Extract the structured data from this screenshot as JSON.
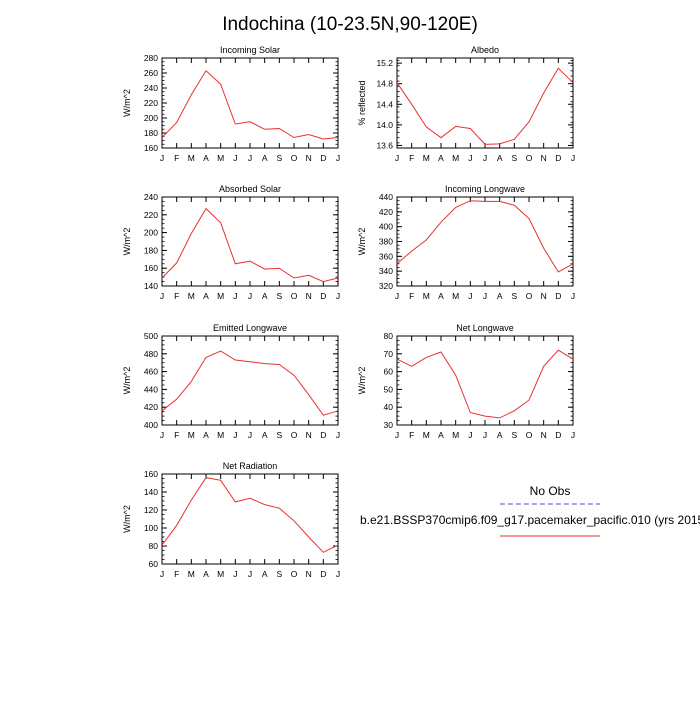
{
  "figure_title": "Indochina (10-23.5N,90-120E)",
  "legend": {
    "obs_label": "No Obs",
    "obs_color": "#6f6fe0",
    "model_label": "b.e21.BSSP370cmip6.f09_g17.pacemaker_pacific.010 (yrs 2015",
    "model_color": "#e8312f"
  },
  "line_color": "#e8312f",
  "chart_data": [
    {
      "type": "line",
      "title": "Incoming Solar",
      "ylabel": "W/m^2",
      "categories": [
        "J",
        "F",
        "M",
        "A",
        "M",
        "J",
        "J",
        "A",
        "S",
        "O",
        "N",
        "D",
        "J"
      ],
      "ylim": [
        160,
        280
      ],
      "yticks": [
        160,
        180,
        200,
        220,
        240,
        260,
        280
      ],
      "series": [
        {
          "name": "b.e21.BSSP370cmip6.f09_g17.pacemaker_pacific.010",
          "values": [
            174,
            194,
            231,
            263,
            245,
            192,
            195,
            185,
            186,
            174,
            178,
            172,
            174
          ]
        }
      ]
    },
    {
      "type": "line",
      "title": "Albedo",
      "ylabel": "% reflected",
      "categories": [
        "J",
        "F",
        "M",
        "A",
        "M",
        "J",
        "J",
        "A",
        "S",
        "O",
        "N",
        "D",
        "J"
      ],
      "ylim": [
        13.55,
        15.3
      ],
      "yticks": [
        13.6,
        14.0,
        14.4,
        14.8,
        15.2
      ],
      "series": [
        {
          "name": "b.e21.BSSP370cmip6.f09_g17.pacemaker_pacific.010",
          "values": [
            14.82,
            14.4,
            13.96,
            13.75,
            13.97,
            13.93,
            13.62,
            13.63,
            13.72,
            14.06,
            14.62,
            15.1,
            14.82
          ]
        }
      ]
    },
    {
      "type": "line",
      "title": "Absorbed Solar",
      "ylabel": "W/m^2",
      "categories": [
        "J",
        "F",
        "M",
        "A",
        "M",
        "J",
        "J",
        "A",
        "S",
        "O",
        "N",
        "D",
        "J"
      ],
      "ylim": [
        140,
        240
      ],
      "yticks": [
        140,
        160,
        180,
        200,
        220,
        240
      ],
      "series": [
        {
          "name": "b.e21.BSSP370cmip6.f09_g17.pacemaker_pacific.010",
          "values": [
            149,
            166,
            199,
            227,
            211,
            165,
            168,
            159,
            160,
            149,
            152,
            145,
            149
          ]
        }
      ]
    },
    {
      "type": "line",
      "title": "Incoming Longwave",
      "ylabel": "W/m^2",
      "categories": [
        "J",
        "F",
        "M",
        "A",
        "M",
        "J",
        "J",
        "A",
        "S",
        "O",
        "N",
        "D",
        "J"
      ],
      "ylim": [
        320,
        440
      ],
      "yticks": [
        320,
        340,
        360,
        380,
        400,
        420,
        440
      ],
      "series": [
        {
          "name": "b.e21.BSSP370cmip6.f09_g17.pacemaker_pacific.010",
          "values": [
            350,
            367,
            382,
            406,
            426,
            435,
            434,
            434,
            429,
            411,
            371,
            339,
            350
          ]
        }
      ]
    },
    {
      "type": "line",
      "title": "Emitted Longwave",
      "ylabel": "W/m^2",
      "categories": [
        "J",
        "F",
        "M",
        "A",
        "M",
        "J",
        "J",
        "A",
        "S",
        "O",
        "N",
        "D",
        "J"
      ],
      "ylim": [
        400,
        500
      ],
      "yticks": [
        400,
        420,
        440,
        460,
        480,
        500
      ],
      "series": [
        {
          "name": "b.e21.BSSP370cmip6.f09_g17.pacemaker_pacific.010",
          "values": [
            416,
            429,
            449,
            476,
            483,
            473,
            471,
            469,
            468,
            456,
            434,
            411,
            416
          ]
        }
      ]
    },
    {
      "type": "line",
      "title": "Net Longwave",
      "ylabel": "W/m^2",
      "categories": [
        "J",
        "F",
        "M",
        "A",
        "M",
        "J",
        "J",
        "A",
        "S",
        "O",
        "N",
        "D",
        "J"
      ],
      "ylim": [
        30,
        80
      ],
      "yticks": [
        30,
        40,
        50,
        60,
        70,
        80
      ],
      "series": [
        {
          "name": "b.e21.BSSP370cmip6.f09_g17.pacemaker_pacific.010",
          "values": [
            67,
            63,
            68,
            71,
            58,
            37,
            35,
            34,
            38,
            44,
            63,
            72,
            67
          ]
        }
      ]
    },
    {
      "type": "line",
      "title": "Net Radiation",
      "ylabel": "W/m^2",
      "categories": [
        "J",
        "F",
        "M",
        "A",
        "M",
        "J",
        "J",
        "A",
        "S",
        "O",
        "N",
        "D",
        "J"
      ],
      "ylim": [
        60,
        160
      ],
      "yticks": [
        60,
        80,
        100,
        120,
        140,
        160
      ],
      "series": [
        {
          "name": "b.e21.BSSP370cmip6.f09_g17.pacemaker_pacific.010",
          "values": [
            81,
            103,
            131,
            156,
            153,
            129,
            133,
            126,
            122,
            108,
            90,
            73,
            81
          ]
        }
      ]
    }
  ]
}
